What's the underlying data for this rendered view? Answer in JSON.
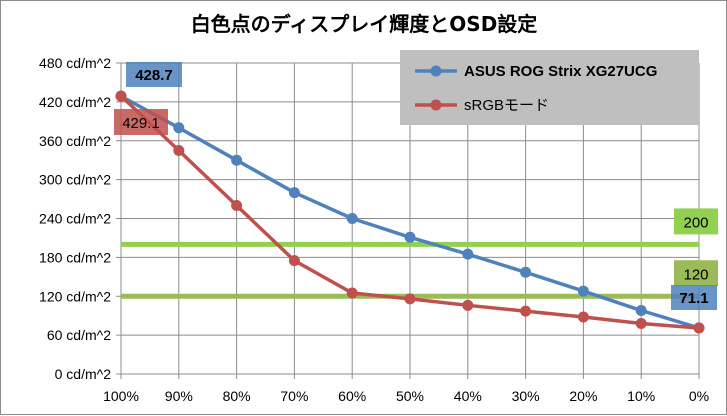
{
  "chart_data": {
    "type": "line",
    "title": "白色点のディスプレイ輝度とOSD設定",
    "categories": [
      "100%",
      "90%",
      "80%",
      "70%",
      "60%",
      "50%",
      "40%",
      "30%",
      "20%",
      "10%",
      "0%"
    ],
    "y_ticks": [
      "0 cd/m^2",
      "60 cd/m^2",
      "120 cd/m^2",
      "180 cd/m^2",
      "240 cd/m^2",
      "300 cd/m^2",
      "360 cd/m^2",
      "420 cd/m^2",
      "480 cd/m^2"
    ],
    "ylim": [
      0,
      480
    ],
    "grid": true,
    "legend_position": "top-right",
    "series": [
      {
        "name": "ASUS ROG Strix XG27UCG",
        "color": "#4f81bd",
        "values": [
          428.7,
          380,
          330,
          280,
          240,
          211,
          185,
          157,
          128,
          98,
          71.1
        ]
      },
      {
        "name": "sRGBモード",
        "color": "#c0504d",
        "values": [
          429.1,
          345,
          260,
          175,
          125,
          116,
          106,
          97,
          88,
          78,
          71
        ]
      }
    ],
    "reference_lines": [
      {
        "value": 200,
        "label": "200",
        "color": "#92d050"
      },
      {
        "value": 120,
        "label": "120",
        "color": "#9bbb59"
      }
    ],
    "annotations": [
      {
        "text": "428.7",
        "color": "#4f81bd"
      },
      {
        "text": "429.1",
        "color": "#c0504d"
      },
      {
        "text": "71.1",
        "color": "#4f81bd"
      }
    ]
  }
}
